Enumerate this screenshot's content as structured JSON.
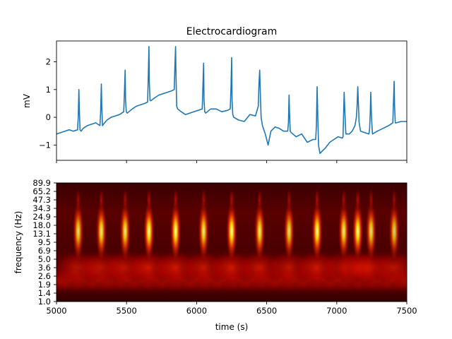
{
  "chart_data": [
    {
      "type": "line",
      "title": "Electrocardiogram",
      "ylabel": "mV",
      "xlabel": "",
      "xlim": [
        5000,
        7500
      ],
      "ylim": [
        -1.55,
        2.75
      ],
      "yticks": [
        -1,
        0,
        1,
        2
      ],
      "ytick_labels": [
        "−1",
        "0",
        "1",
        "2"
      ],
      "xticks": [
        5000,
        5500,
        6000,
        6500,
        7000,
        7500
      ],
      "grid": false,
      "series": [
        {
          "color": "#1f77b4",
          "x": [
            5000,
            5030,
            5060,
            5090,
            5120,
            5150,
            5155,
            5160,
            5163,
            5168,
            5175,
            5190,
            5220,
            5250,
            5280,
            5310,
            5315,
            5320,
            5323,
            5328,
            5335,
            5360,
            5390,
            5420,
            5450,
            5480,
            5485,
            5490,
            5493,
            5498,
            5505,
            5540,
            5570,
            5600,
            5630,
            5650,
            5655,
            5660,
            5663,
            5668,
            5675,
            5700,
            5730,
            5760,
            5790,
            5820,
            5840,
            5845,
            5850,
            5853,
            5858,
            5865,
            5890,
            5920,
            5950,
            5980,
            6010,
            6040,
            6045,
            6050,
            6053,
            6058,
            6065,
            6100,
            6140,
            6180,
            6220,
            6240,
            6245,
            6250,
            6253,
            6258,
            6265,
            6300,
            6340,
            6380,
            6420,
            6440,
            6445,
            6450,
            6455,
            6460,
            6470,
            6490,
            6510,
            6530,
            6560,
            6590,
            6620,
            6650,
            6655,
            6660,
            6663,
            6668,
            6675,
            6710,
            6750,
            6790,
            6830,
            6850,
            6855,
            6860,
            6865,
            6870,
            6880,
            6900,
            6920,
            6950,
            6980,
            7010,
            7040,
            7045,
            7050,
            7053,
            7058,
            7065,
            7090,
            7110,
            7130,
            7140,
            7145,
            7150,
            7155,
            7160,
            7170,
            7200,
            7230,
            7235,
            7240,
            7243,
            7248,
            7255,
            7290,
            7330,
            7370,
            7400,
            7405,
            7410,
            7413,
            7418,
            7425,
            7460,
            7500
          ],
          "y": [
            -0.6,
            -0.55,
            -0.5,
            -0.45,
            -0.5,
            -0.45,
            0.0,
            1.0,
            0.3,
            -0.45,
            -0.5,
            -0.4,
            -0.3,
            -0.25,
            -0.2,
            -0.3,
            0.2,
            1.2,
            0.4,
            -0.3,
            -0.25,
            -0.1,
            0.0,
            0.05,
            0.1,
            0.2,
            0.9,
            1.7,
            0.6,
            0.2,
            0.15,
            0.3,
            0.4,
            0.45,
            0.5,
            0.55,
            1.5,
            2.55,
            1.2,
            0.6,
            0.6,
            0.7,
            0.8,
            0.85,
            0.9,
            0.95,
            1.0,
            1.8,
            2.55,
            1.5,
            0.4,
            0.3,
            0.2,
            0.1,
            0.15,
            0.2,
            0.25,
            0.3,
            1.1,
            1.95,
            0.6,
            0.2,
            0.15,
            0.3,
            0.3,
            0.2,
            0.25,
            0.3,
            1.0,
            2.15,
            0.6,
            0.1,
            0.0,
            -0.1,
            -0.15,
            0.1,
            0.05,
            0.4,
            1.2,
            1.7,
            0.8,
            0.0,
            -0.3,
            -0.6,
            -1.0,
            -0.5,
            -0.35,
            -0.4,
            -0.5,
            -0.5,
            -0.2,
            0.8,
            0.2,
            -0.5,
            -0.55,
            -0.7,
            -0.6,
            -0.9,
            -0.8,
            -0.8,
            -0.3,
            1.1,
            0.0,
            -1.0,
            -1.3,
            -1.2,
            -1.1,
            -0.9,
            -0.8,
            -0.7,
            -0.75,
            -0.7,
            0.3,
            0.9,
            0.2,
            -0.6,
            -0.6,
            -0.5,
            -0.3,
            0.0,
            0.4,
            1.1,
            0.4,
            -0.2,
            -0.5,
            -0.55,
            -0.6,
            -0.4,
            0.3,
            0.9,
            0.0,
            -0.6,
            -0.5,
            -0.4,
            -0.3,
            -0.2,
            0.6,
            1.3,
            0.4,
            -0.2,
            -0.2,
            -0.15,
            -0.15
          ]
        }
      ]
    },
    {
      "type": "heatmap",
      "xlabel": "time (s)",
      "ylabel": "frequency (Hz)",
      "xlim": [
        5000,
        7500
      ],
      "xtick_labels": [
        "5000",
        "5500",
        "6000",
        "6500",
        "7000",
        "7500"
      ],
      "ytick_labels": [
        "1.0",
        "1.4",
        "1.9",
        "2.6",
        "3.6",
        "5.0",
        "6.9",
        "9.5",
        "13.1",
        "18.0",
        "24.9",
        "34.3",
        "47.3",
        "65.2",
        "89.9"
      ],
      "colormap": "hot",
      "beats_x": [
        5155,
        5320,
        5490,
        5660,
        5850,
        6050,
        6250,
        6450,
        6660,
        6860,
        7050,
        7150,
        7245,
        7410
      ],
      "beat_strength": [
        0.85,
        0.9,
        0.9,
        1.0,
        1.0,
        0.9,
        1.0,
        0.9,
        0.85,
        1.0,
        0.9,
        1.0,
        0.85,
        0.8
      ]
    }
  ]
}
